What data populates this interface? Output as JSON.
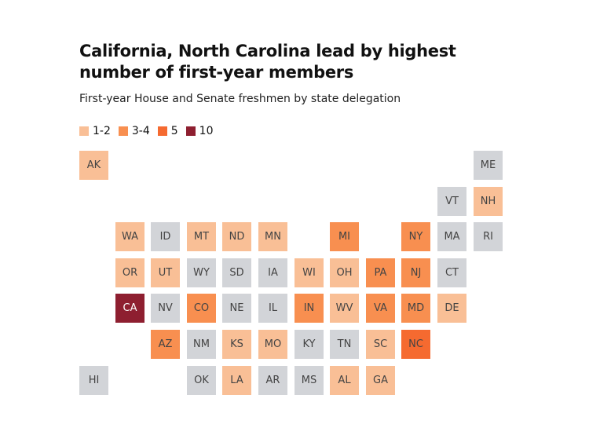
{
  "title": "California, North Carolina lead by highest number of first-year members",
  "subtitle": "First-year House and Senate freshmen by state delegation",
  "legend": [
    {
      "label": "1-2",
      "color": "#f9bf96"
    },
    {
      "label": "3-4",
      "color": "#f88f50"
    },
    {
      "label": "5",
      "color": "#f56a30"
    },
    {
      "label": "10",
      "color": "#8e1f30"
    }
  ],
  "no_data_color": "#d2d4d8",
  "states": [
    {
      "abbr": "AK",
      "row": 0,
      "col": 0,
      "level": "1-2"
    },
    {
      "abbr": "ME",
      "row": 0,
      "col": 11,
      "level": null
    },
    {
      "abbr": "VT",
      "row": 1,
      "col": 10,
      "level": null
    },
    {
      "abbr": "NH",
      "row": 1,
      "col": 11,
      "level": "1-2"
    },
    {
      "abbr": "WA",
      "row": 2,
      "col": 1,
      "level": "1-2"
    },
    {
      "abbr": "ID",
      "row": 2,
      "col": 2,
      "level": null
    },
    {
      "abbr": "MT",
      "row": 2,
      "col": 3,
      "level": "1-2"
    },
    {
      "abbr": "ND",
      "row": 2,
      "col": 4,
      "level": "1-2"
    },
    {
      "abbr": "MN",
      "row": 2,
      "col": 5,
      "level": "1-2"
    },
    {
      "abbr": "MI",
      "row": 2,
      "col": 7,
      "level": "3-4"
    },
    {
      "abbr": "NY",
      "row": 2,
      "col": 9,
      "level": "3-4"
    },
    {
      "abbr": "MA",
      "row": 2,
      "col": 10,
      "level": null
    },
    {
      "abbr": "RI",
      "row": 2,
      "col": 11,
      "level": null
    },
    {
      "abbr": "OR",
      "row": 3,
      "col": 1,
      "level": "1-2"
    },
    {
      "abbr": "UT",
      "row": 3,
      "col": 2,
      "level": "1-2"
    },
    {
      "abbr": "WY",
      "row": 3,
      "col": 3,
      "level": null
    },
    {
      "abbr": "SD",
      "row": 3,
      "col": 4,
      "level": null
    },
    {
      "abbr": "IA",
      "row": 3,
      "col": 5,
      "level": null
    },
    {
      "abbr": "WI",
      "row": 3,
      "col": 6,
      "level": "1-2"
    },
    {
      "abbr": "OH",
      "row": 3,
      "col": 7,
      "level": "1-2"
    },
    {
      "abbr": "PA",
      "row": 3,
      "col": 8,
      "level": "3-4"
    },
    {
      "abbr": "NJ",
      "row": 3,
      "col": 9,
      "level": "3-4"
    },
    {
      "abbr": "CT",
      "row": 3,
      "col": 10,
      "level": null
    },
    {
      "abbr": "CA",
      "row": 4,
      "col": 1,
      "level": "10"
    },
    {
      "abbr": "NV",
      "row": 4,
      "col": 2,
      "level": null
    },
    {
      "abbr": "CO",
      "row": 4,
      "col": 3,
      "level": "3-4"
    },
    {
      "abbr": "NE",
      "row": 4,
      "col": 4,
      "level": null
    },
    {
      "abbr": "IL",
      "row": 4,
      "col": 5,
      "level": null
    },
    {
      "abbr": "IN",
      "row": 4,
      "col": 6,
      "level": "3-4"
    },
    {
      "abbr": "WV",
      "row": 4,
      "col": 7,
      "level": "1-2"
    },
    {
      "abbr": "VA",
      "row": 4,
      "col": 8,
      "level": "3-4"
    },
    {
      "abbr": "MD",
      "row": 4,
      "col": 9,
      "level": "3-4"
    },
    {
      "abbr": "DE",
      "row": 4,
      "col": 10,
      "level": "1-2"
    },
    {
      "abbr": "AZ",
      "row": 5,
      "col": 2,
      "level": "3-4"
    },
    {
      "abbr": "NM",
      "row": 5,
      "col": 3,
      "level": null
    },
    {
      "abbr": "KS",
      "row": 5,
      "col": 4,
      "level": "1-2"
    },
    {
      "abbr": "MO",
      "row": 5,
      "col": 5,
      "level": "1-2"
    },
    {
      "abbr": "KY",
      "row": 5,
      "col": 6,
      "level": null
    },
    {
      "abbr": "TN",
      "row": 5,
      "col": 7,
      "level": null
    },
    {
      "abbr": "SC",
      "row": 5,
      "col": 8,
      "level": "1-2"
    },
    {
      "abbr": "NC",
      "row": 5,
      "col": 9,
      "level": "5"
    },
    {
      "abbr": "HI",
      "row": 6,
      "col": 0,
      "level": null
    },
    {
      "abbr": "OK",
      "row": 6,
      "col": 3,
      "level": null
    },
    {
      "abbr": "LA",
      "row": 6,
      "col": 4,
      "level": "1-2"
    },
    {
      "abbr": "AR",
      "row": 6,
      "col": 5,
      "level": null
    },
    {
      "abbr": "MS",
      "row": 6,
      "col": 6,
      "level": null
    },
    {
      "abbr": "AL",
      "row": 6,
      "col": 7,
      "level": "1-2"
    },
    {
      "abbr": "GA",
      "row": 6,
      "col": 8,
      "level": "1-2"
    }
  ]
}
